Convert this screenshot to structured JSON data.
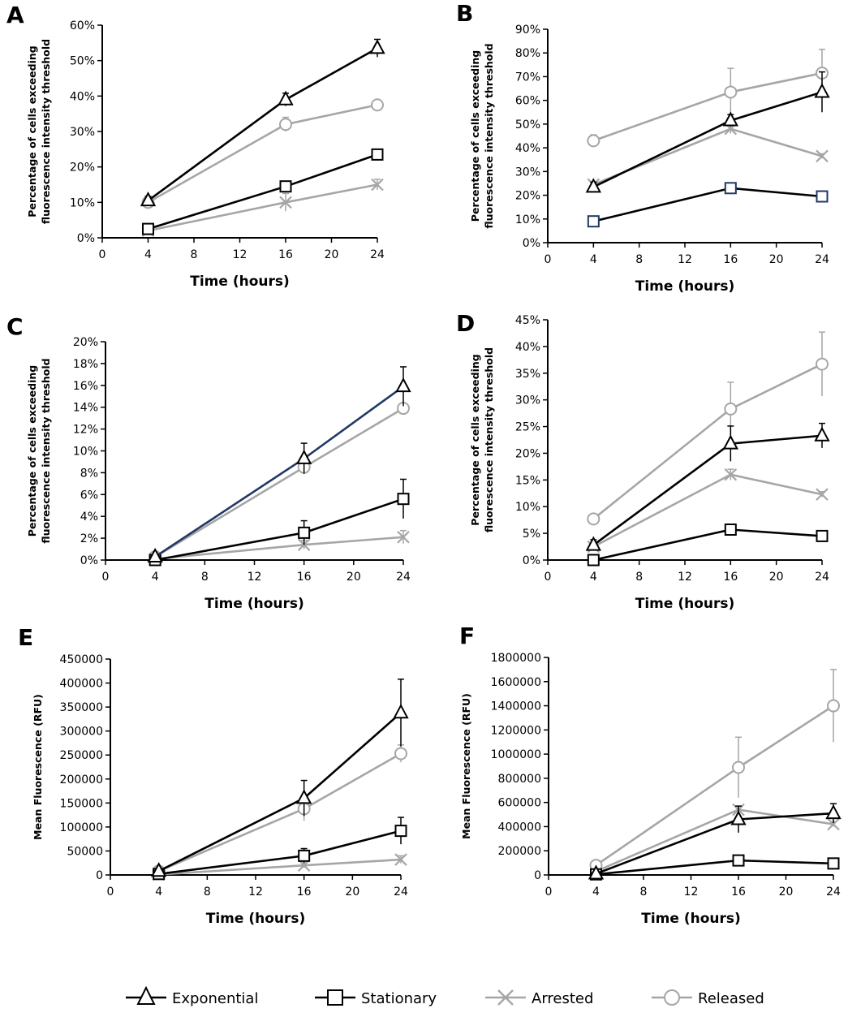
{
  "chart_data": [
    {
      "type": "line",
      "panel_label": "A",
      "xlabel": "Time (hours)",
      "ylabel": [
        "Percentage of cells exceeding",
        "fluorescence intensity threshold"
      ],
      "x_ticks": [
        "0",
        "4",
        "8",
        "12",
        "16",
        "20",
        "24"
      ],
      "y_ticks": [
        "0%",
        "10%",
        "20%",
        "30%",
        "40%",
        "50%",
        "60%"
      ],
      "xlim": [
        0,
        24
      ],
      "ylim": [
        0,
        60
      ],
      "x": [
        4,
        16,
        24
      ],
      "series": [
        {
          "name": "Exponential",
          "values": [
            10.5,
            39,
            53.5
          ],
          "errors": [
            1.2,
            1.8,
            2.5
          ]
        },
        {
          "name": "Stationary",
          "values": [
            2.5,
            14.5,
            23.5
          ],
          "errors": [
            0.5,
            1,
            1
          ]
        },
        {
          "name": "Arrested",
          "values": [
            2,
            10,
            15
          ],
          "errors": [
            0.5,
            2.5,
            1.5
          ]
        },
        {
          "name": "Released",
          "values": [
            10,
            32,
            37.5
          ],
          "errors": [
            0.8,
            2,
            1
          ]
        }
      ]
    },
    {
      "type": "line",
      "panel_label": "B",
      "xlabel": "Time (hours)",
      "ylabel": [
        "Percentage of cells exceeding",
        "fluorescence intensity threshold"
      ],
      "x_ticks": [
        "0",
        "4",
        "8",
        "12",
        "16",
        "20",
        "24"
      ],
      "y_ticks": [
        "0%",
        "10%",
        "20%",
        "30%",
        "40%",
        "50%",
        "60%",
        "70%",
        "80%",
        "90%"
      ],
      "xlim": [
        0,
        24
      ],
      "ylim": [
        0,
        90
      ],
      "x": [
        4,
        16,
        24
      ],
      "series": [
        {
          "name": "Exponential",
          "values": [
            23.5,
            51.5,
            63.5
          ],
          "errors": [
            2,
            2.5,
            8.5
          ]
        },
        {
          "name": "Stationary",
          "values": [
            9,
            23,
            19.5
          ],
          "errors": [
            1,
            1,
            1
          ]
        },
        {
          "name": "Arrested",
          "values": [
            24.5,
            48,
            36.5
          ],
          "errors": [
            1,
            2,
            1
          ]
        },
        {
          "name": "Released",
          "values": [
            43,
            63.5,
            71.5
          ],
          "errors": [
            2.5,
            10,
            10
          ]
        }
      ]
    },
    {
      "type": "line",
      "panel_label": "C",
      "xlabel": "Time (hours)",
      "ylabel": [
        "Percentage of cells exceeding",
        "fluorescence intensity threshold"
      ],
      "x_ticks": [
        "0",
        "4",
        "8",
        "12",
        "16",
        "20",
        "24"
      ],
      "y_ticks": [
        "0%",
        "2%",
        "4%",
        "6%",
        "8%",
        "10%",
        "12%",
        "14%",
        "16%",
        "18%",
        "20%"
      ],
      "xlim": [
        0,
        24
      ],
      "ylim": [
        0,
        20
      ],
      "x": [
        4,
        16,
        24
      ],
      "series": [
        {
          "name": "Exponential",
          "values": [
            0.3,
            9.3,
            15.9
          ],
          "errors": [
            0.1,
            1.4,
            1.8
          ]
        },
        {
          "name": "Stationary",
          "values": [
            0,
            2.5,
            5.6
          ],
          "errors": [
            0.1,
            1.1,
            1.8
          ]
        },
        {
          "name": "Arrested",
          "values": [
            0.1,
            1.4,
            2.1
          ],
          "errors": [
            0.1,
            0.4,
            0.6
          ]
        },
        {
          "name": "Released",
          "values": [
            0.3,
            8.5,
            13.9
          ],
          "errors": [
            0.1,
            0.6,
            0.3
          ]
        }
      ]
    },
    {
      "type": "line",
      "panel_label": "D",
      "xlabel": "Time (hours)",
      "ylabel": [
        "Percentage of cells exceeding",
        "fluorescence intensity threshold"
      ],
      "x_ticks": [
        "0",
        "4",
        "8",
        "12",
        "16",
        "20",
        "24"
      ],
      "y_ticks": [
        "0%",
        "5%",
        "10%",
        "15%",
        "20%",
        "25%",
        "30%",
        "35%",
        "40%",
        "45%"
      ],
      "xlim": [
        0,
        24
      ],
      "ylim": [
        0,
        45
      ],
      "x": [
        4,
        16,
        24
      ],
      "series": [
        {
          "name": "Exponential",
          "values": [
            2.8,
            21.8,
            23.3
          ],
          "errors": [
            1,
            3.3,
            2.3
          ]
        },
        {
          "name": "Stationary",
          "values": [
            0,
            5.7,
            4.5
          ],
          "errors": [
            0.2,
            0.5,
            0.5
          ]
        },
        {
          "name": "Arrested",
          "values": [
            2.5,
            16,
            12.3
          ],
          "errors": [
            0.5,
            1,
            0.5
          ]
        },
        {
          "name": "Released",
          "values": [
            7.7,
            28.3,
            36.7
          ],
          "errors": [
            0.5,
            5,
            6
          ]
        }
      ]
    },
    {
      "type": "line",
      "panel_label": "E",
      "xlabel": "Time (hours)",
      "ylabel": [
        "Mean Fluorescence (RFU)"
      ],
      "x_ticks": [
        "0",
        "4",
        "8",
        "12",
        "16",
        "20",
        "24"
      ],
      "y_ticks": [
        "0",
        "50000",
        "100000",
        "150000",
        "200000",
        "250000",
        "300000",
        "350000",
        "400000",
        "450000"
      ],
      "xlim": [
        0,
        24
      ],
      "ylim": [
        0,
        450000
      ],
      "x": [
        4,
        16,
        24
      ],
      "series": [
        {
          "name": "Exponential",
          "values": [
            8000,
            160000,
            338000
          ],
          "errors": [
            5000,
            37000,
            70000
          ]
        },
        {
          "name": "Stationary",
          "values": [
            2000,
            40000,
            92000
          ],
          "errors": [
            2000,
            15000,
            28000
          ]
        },
        {
          "name": "Arrested",
          "values": [
            1000,
            20000,
            32000
          ],
          "errors": [
            1000,
            5000,
            8000
          ]
        },
        {
          "name": "Released",
          "values": [
            8000,
            138000,
            253000
          ],
          "errors": [
            5000,
            25000,
            18000
          ]
        }
      ]
    },
    {
      "type": "line",
      "panel_label": "F",
      "xlabel": "Time (hours)",
      "ylabel": [
        "Mean Fluorescence (RFU)"
      ],
      "x_ticks": [
        "0",
        "4",
        "8",
        "12",
        "16",
        "20",
        "24"
      ],
      "y_ticks": [
        "0",
        "200000",
        "400000",
        "600000",
        "800000",
        "1000000",
        "1200000",
        "1400000",
        "1600000",
        "1800000"
      ],
      "xlim": [
        0,
        24
      ],
      "ylim": [
        0,
        1800000
      ],
      "x": [
        4,
        16,
        24
      ],
      "series": [
        {
          "name": "Exponential",
          "values": [
            10000,
            460000,
            510000
          ],
          "errors": [
            5000,
            110000,
            80000
          ]
        },
        {
          "name": "Stationary",
          "values": [
            5000,
            120000,
            95000
          ],
          "errors": [
            3000,
            10000,
            10000
          ]
        },
        {
          "name": "Arrested",
          "values": [
            30000,
            540000,
            420000
          ],
          "errors": [
            5000,
            30000,
            20000
          ]
        },
        {
          "name": "Released",
          "values": [
            80000,
            890000,
            1400000
          ],
          "errors": [
            10000,
            250000,
            300000
          ]
        }
      ]
    }
  ],
  "legend": [
    {
      "name": "Exponential",
      "marker": "triangle",
      "color": "#000000"
    },
    {
      "name": "Stationary",
      "marker": "square",
      "color": "#000000"
    },
    {
      "name": "Arrested",
      "marker": "cross",
      "color": "#a6a6a6"
    },
    {
      "name": "Released",
      "marker": "circle",
      "color": "#a6a6a6"
    }
  ],
  "colors": {
    "black_series": "#000000",
    "gray_series": "#a6a6a6",
    "navy_line": "#1f3864",
    "navy_marker": "#1f3864"
  }
}
